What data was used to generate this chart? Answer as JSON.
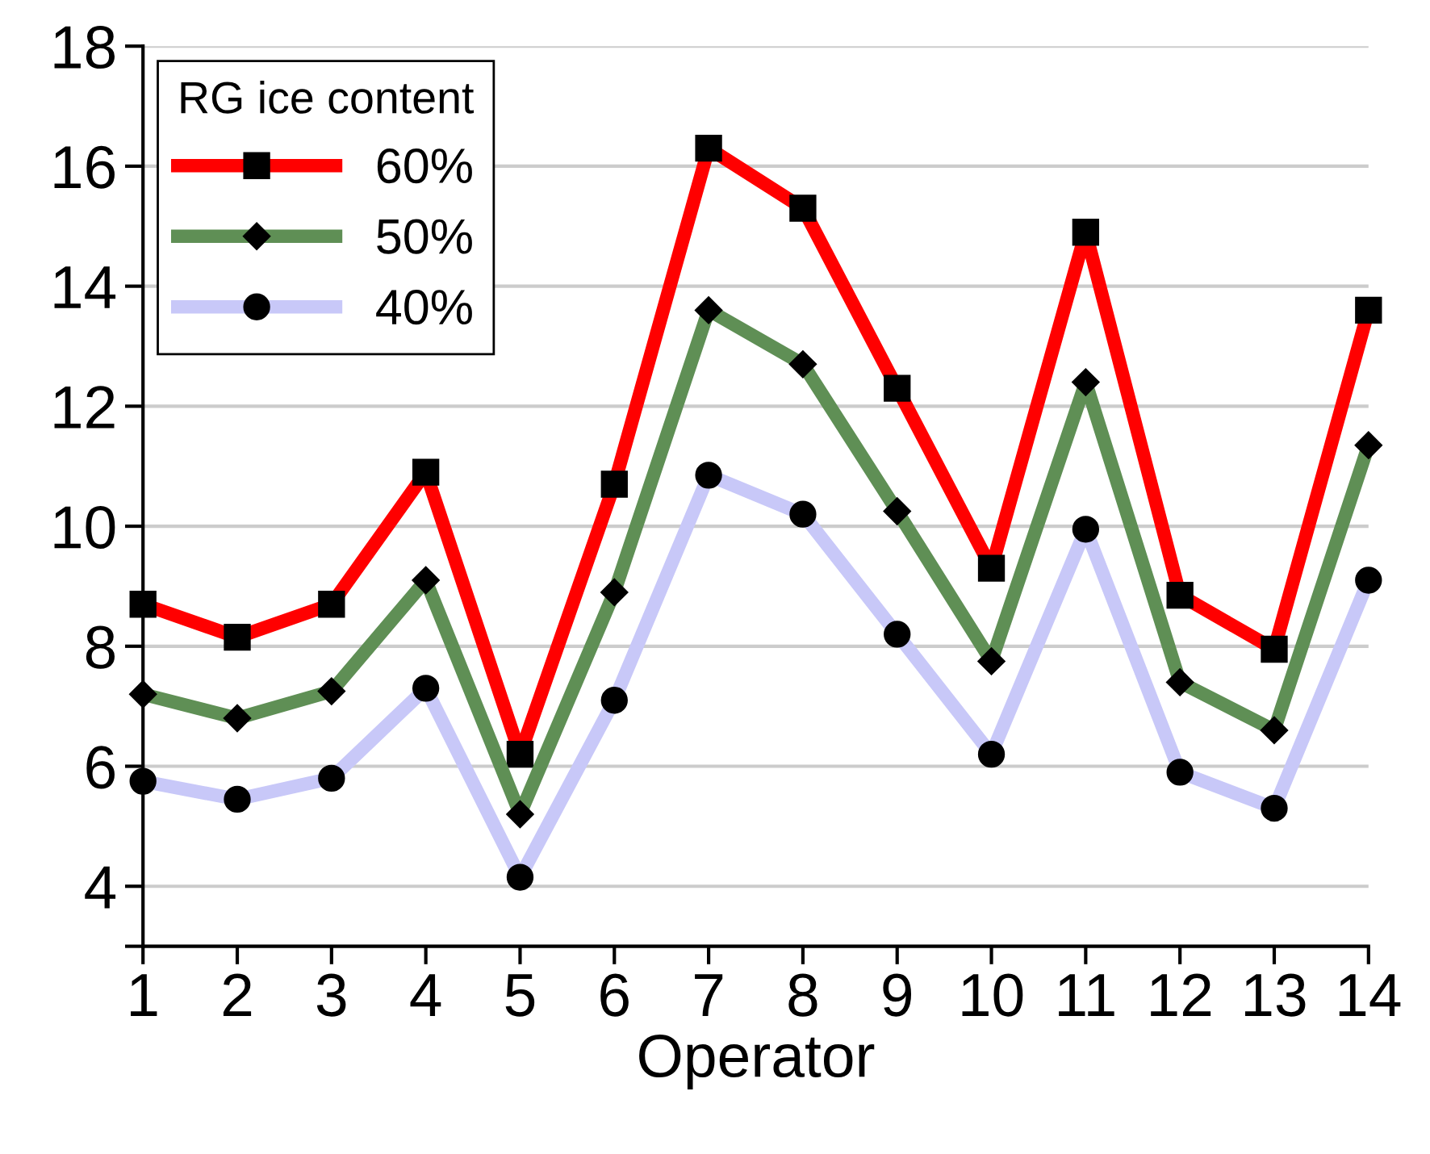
{
  "chart_data": {
    "type": "line",
    "xlabel": "Operator",
    "legend_title": "RG ice content",
    "legend": "top left",
    "grid": "y",
    "x": [
      1,
      2,
      3,
      4,
      5,
      6,
      7,
      8,
      9,
      10,
      11,
      12,
      13,
      14
    ],
    "xlim": [
      1,
      14
    ],
    "xticks": [
      1,
      2,
      3,
      4,
      5,
      6,
      7,
      8,
      9,
      10,
      11,
      12,
      13,
      14
    ],
    "ylim": [
      3,
      18
    ],
    "yticks": [
      {
        "value": 3,
        "label": null
      },
      4,
      6,
      8,
      10,
      12,
      14,
      16,
      18
    ],
    "series": [
      {
        "name": "60%",
        "color": "#ff0000",
        "marker": "square",
        "values": [
          8.7,
          8.15,
          8.7,
          10.9,
          6.2,
          10.7,
          16.3,
          15.3,
          12.3,
          9.3,
          14.9,
          8.85,
          7.95,
          13.6
        ]
      },
      {
        "name": "50%",
        "color": "#5f8f55",
        "marker": "diamond",
        "values": [
          7.2,
          6.8,
          7.25,
          9.1,
          5.2,
          8.9,
          13.6,
          12.7,
          10.25,
          7.75,
          12.4,
          7.4,
          6.6,
          11.35
        ]
      },
      {
        "name": "40%",
        "color": "#c8c8f8",
        "marker": "circle",
        "values": [
          5.75,
          5.45,
          5.8,
          7.3,
          4.15,
          7.1,
          10.85,
          10.2,
          8.2,
          6.2,
          9.95,
          5.9,
          5.3,
          9.1
        ]
      }
    ]
  }
}
